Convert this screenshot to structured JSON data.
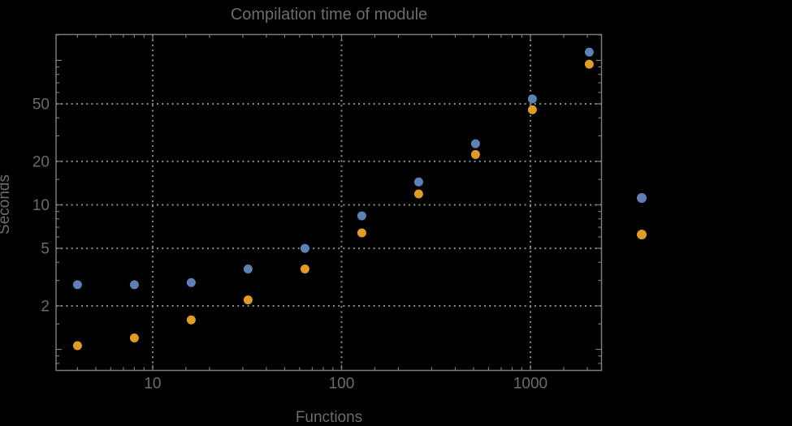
{
  "chart_data": {
    "type": "scatter",
    "title": "Compilation time of module",
    "xlabel": "Functions",
    "ylabel": "Seconds",
    "x_scale": "log",
    "y_scale": "log",
    "xlim": [
      3.08,
      2378
    ],
    "ylim": [
      0.715,
      151
    ],
    "grid_style": "dotted",
    "grid_on": true,
    "x_major_ticks": [
      {
        "v": 10,
        "label": "10"
      },
      {
        "v": 100,
        "label": "100"
      },
      {
        "v": 1000,
        "label": "1000"
      }
    ],
    "y_major_ticks": [
      {
        "v": 2,
        "label": "2"
      },
      {
        "v": 5,
        "label": "5"
      },
      {
        "v": 10,
        "label": "10"
      },
      {
        "v": 20,
        "label": "20"
      },
      {
        "v": 50,
        "label": "50"
      }
    ],
    "x": [
      4,
      8,
      16,
      32,
      64,
      128,
      256,
      512,
      1024,
      2048
    ],
    "series": [
      {
        "name": "series-1-blue",
        "color": "#5E81B5",
        "values": [
          2.8,
          2.8,
          2.9,
          3.6,
          5.0,
          8.4,
          14.4,
          26.5,
          54,
          114
        ]
      },
      {
        "name": "series-2-orange",
        "color": "#E19C24",
        "values": [
          1.06,
          1.2,
          1.6,
          2.2,
          3.6,
          6.4,
          11.9,
          22.3,
          45.5,
          94
        ]
      }
    ],
    "legend": {
      "position": "right-outside",
      "labels_visible": false,
      "marker_colors": [
        "#5E81B5",
        "#E19C24"
      ]
    }
  },
  "colors": {
    "background": "#000000",
    "frame": "#7b7b7b",
    "grid": "#8b8b8b",
    "text": "#6c6c6c"
  }
}
